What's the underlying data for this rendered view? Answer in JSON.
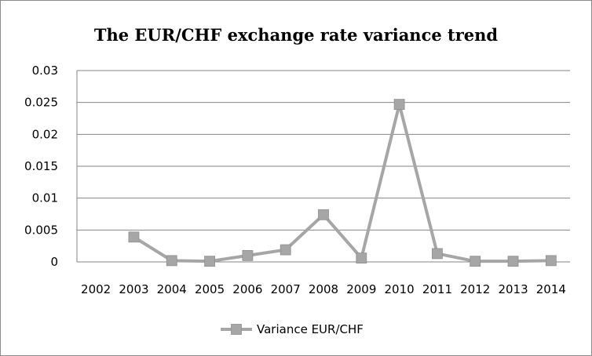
{
  "chart_data": {
    "type": "line",
    "title": "The EUR/CHF exchange rate variance trend",
    "xlabel": "",
    "ylabel": "",
    "categories": [
      "2002",
      "2003",
      "2004",
      "2005",
      "2006",
      "2007",
      "2008",
      "2009",
      "2010",
      "2011",
      "2012",
      "2013",
      "2014"
    ],
    "series": [
      {
        "name": "Variance EUR/CHF",
        "color": "#a6a6a6",
        "values": [
          null,
          0.0039,
          0.0002,
          0.0001,
          0.001,
          0.0019,
          0.0074,
          0.0006,
          0.0247,
          0.0013,
          0.0001,
          0.0001,
          0.0002
        ]
      }
    ],
    "ylim": [
      0,
      0.03
    ],
    "yticks": [
      "0",
      "0.005",
      "0.01",
      "0.015",
      "0.02",
      "0.025",
      "0.03"
    ],
    "grid": true,
    "legend_position": "bottom",
    "gridline_color": "#868686",
    "axis_color": "#868686"
  }
}
